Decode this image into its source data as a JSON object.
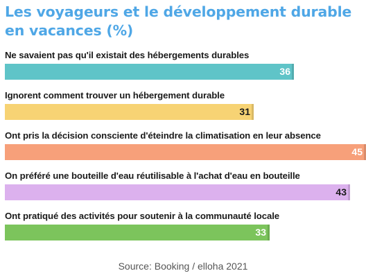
{
  "title": "Les voyageurs et le développement durable en vacances (%)",
  "source": "Source: Booking / elloha 2021",
  "chart_data": {
    "type": "bar",
    "orientation": "horizontal",
    "title": "Les voyageurs et le développement durable en vacances (%)",
    "xlim": [
      0,
      45
    ],
    "grid": false,
    "legend": "none",
    "categories": [
      "Ne savaient pas qu'il existait des hébergements durables",
      "Ignorent comment trouver un hébergement durable",
      "Ont pris la décision consciente d'éteindre la climatisation en leur absence",
      "On préféré une bouteille d'eau réutilisable à l'achat d'eau en bouteille",
      "Ont pratiqué des activités pour soutenir à la communauté locale"
    ],
    "values": [
      36,
      31,
      45,
      43,
      33
    ],
    "value_labels": [
      "36",
      "31",
      "45",
      "43",
      "33"
    ],
    "colors": [
      "#5fc4c8",
      "#f7d374",
      "#f7a07a",
      "#dcb1ee",
      "#7cc45c"
    ],
    "label_colors": [
      "#ffffff",
      "#1a1a1a",
      "#ffffff",
      "#1a1a1a",
      "#ffffff"
    ]
  }
}
